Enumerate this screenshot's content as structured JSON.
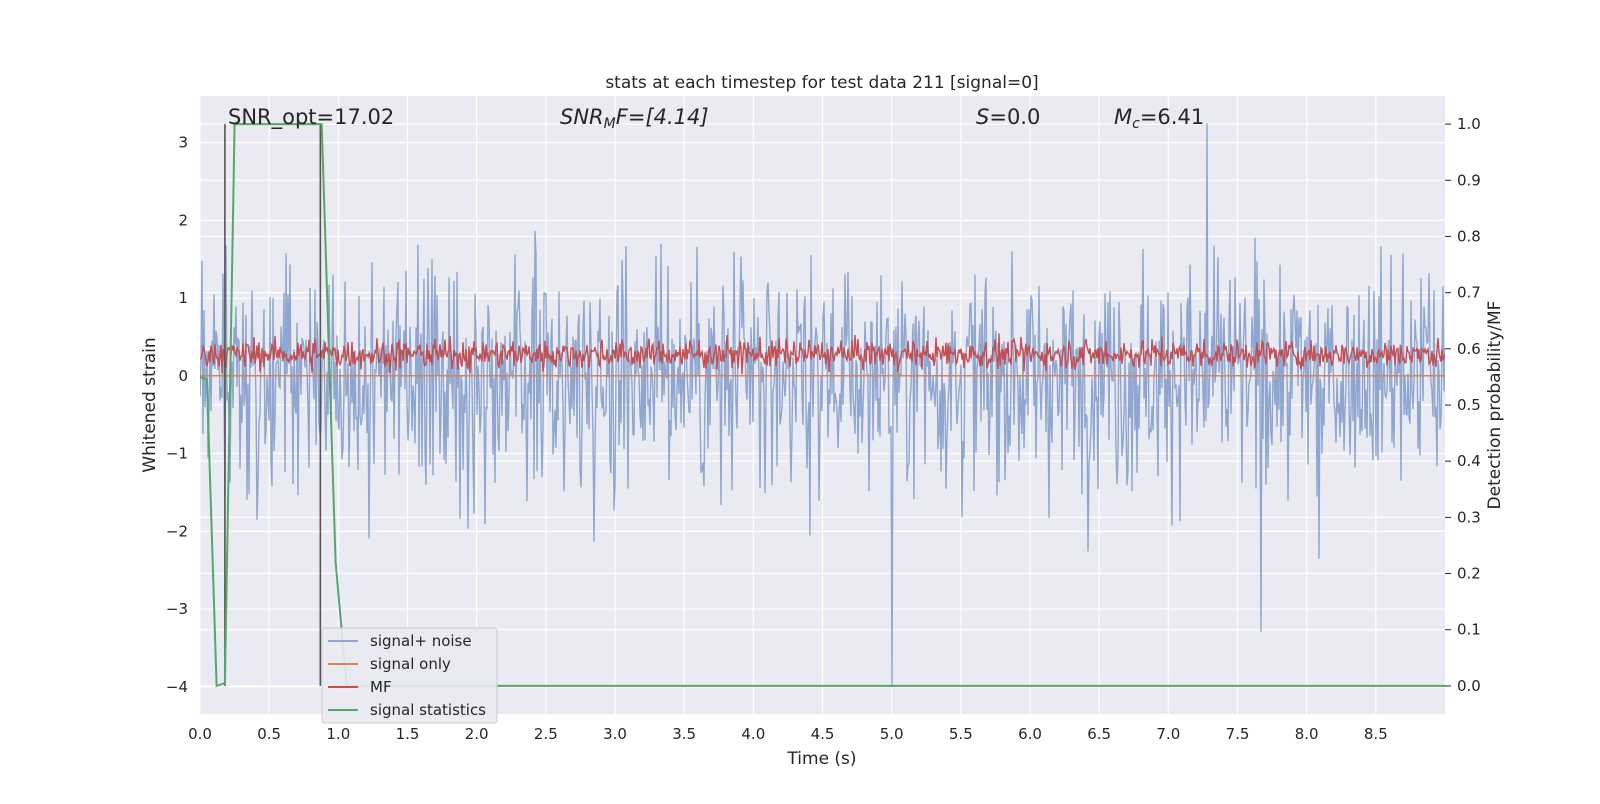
{
  "chart_data": {
    "type": "line",
    "title": "stats at each timestep for test data 211 [signal=0]",
    "xlabel": "Time (s)",
    "ylabel": "Whitened strain",
    "y2label": "Detection probability/MF",
    "xlim": [
      0,
      9.0
    ],
    "ylim": [
      -4.35,
      3.6
    ],
    "y2lim": [
      -0.05,
      1.05
    ],
    "xticks": [
      "0.0",
      "0.5",
      "1.0",
      "1.5",
      "2.0",
      "2.5",
      "3.0",
      "3.5",
      "4.0",
      "4.5",
      "5.0",
      "5.5",
      "6.0",
      "6.5",
      "7.0",
      "7.5",
      "8.0",
      "8.5"
    ],
    "yticks": [
      "3",
      "2",
      "1",
      "0",
      "−1",
      "−2",
      "−3",
      "−4"
    ],
    "y2ticks": [
      "1.0",
      "0.9",
      "0.8",
      "0.7",
      "0.6",
      "0.5",
      "0.4",
      "0.3",
      "0.2",
      "0.1",
      "0.0"
    ],
    "grid": true,
    "background": "#eaeaf2",
    "legend_position": "lower-left",
    "annotations": {
      "snr_opt": "SNR_opt=17.02",
      "snr_mf_base": "SNR",
      "snr_mf_sub": "M",
      "snr_mf_rest": "F=[4.14]",
      "s_var": "S",
      "s_value": "=0.0",
      "mc_var": "M",
      "mc_sub": "c",
      "mc_value": "=6.41"
    },
    "series": [
      {
        "name": "signal+ noise",
        "color": "#8fa7d0",
        "axis": "left",
        "pattern": "noise",
        "approx_std": 1.0,
        "approx_range": [
          -4.0,
          3.25
        ],
        "notable_points": [
          [
            5.0,
            -4.0
          ],
          [
            7.28,
            3.25
          ]
        ]
      },
      {
        "name": "signal only",
        "color": "#dd8452",
        "axis": "left",
        "x": [
          0,
          9.0
        ],
        "y": [
          0.0,
          0.0
        ]
      },
      {
        "name": "MF",
        "color": "#c44e52",
        "axis": "left",
        "pattern": "noise",
        "approx_mean": 0.28,
        "approx_range": [
          0.0,
          1.0
        ]
      },
      {
        "name": "signal statistics",
        "color": "#55a868",
        "axis": "right",
        "x": [
          0.0,
          0.05,
          0.12,
          0.18,
          0.25,
          0.88,
          0.98,
          1.06,
          9.0
        ],
        "y": [
          0.55,
          0.545,
          0.0,
          0.005,
          1.0,
          1.0,
          0.22,
          0.0,
          0.0
        ]
      }
    ],
    "vertical_lines": [
      {
        "x": 0.18,
        "color": "#555555"
      },
      {
        "x": 0.87,
        "color": "#555555"
      }
    ]
  }
}
